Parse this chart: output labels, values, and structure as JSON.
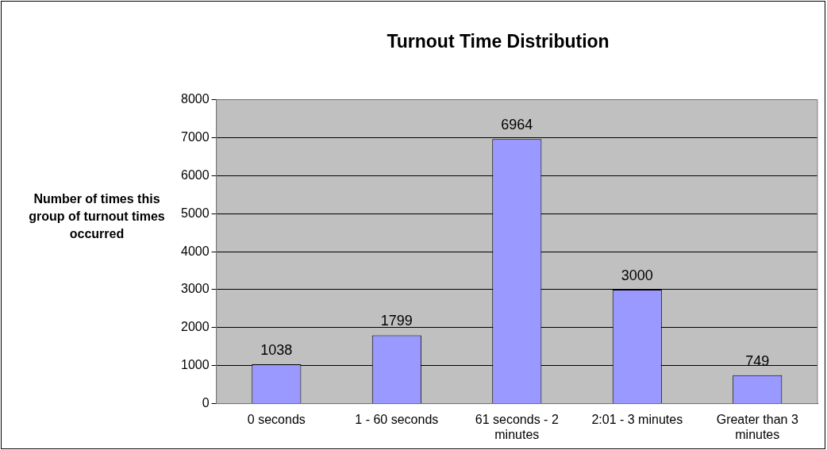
{
  "chart_data": {
    "type": "bar",
    "title": "Turnout Time Distribution",
    "ylabel": "Number of times this group of turnout times occurred",
    "categories": [
      "0 seconds",
      "1 - 60 seconds",
      "61 seconds - 2 minutes",
      "2:01 - 3 minutes",
      "Greater than 3 minutes"
    ],
    "values": [
      1038,
      1799,
      6964,
      3000,
      749
    ],
    "color": "#9999ff",
    "ylim": [
      0,
      8000
    ],
    "yticks": [
      0,
      1000,
      2000,
      3000,
      4000,
      5000,
      6000,
      7000,
      8000
    ],
    "grid": "y",
    "data_labels": true,
    "legend": false
  }
}
